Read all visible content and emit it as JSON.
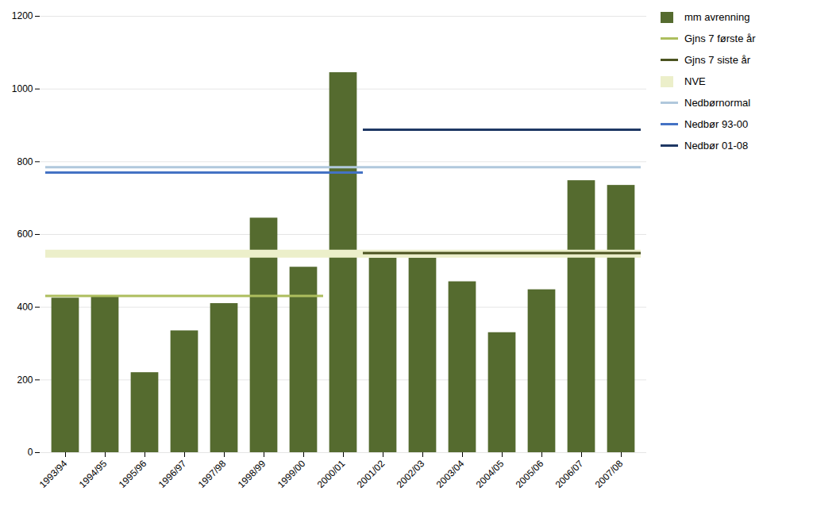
{
  "chart_data": {
    "type": "bar",
    "categories": [
      "1993/94",
      "1994/95",
      "1995/96",
      "1996/97",
      "1997/98",
      "1998/99",
      "1999/00",
      "2000/01",
      "2001/02",
      "2002/03",
      "2003/04",
      "2004/05",
      "2005/06",
      "2006/07",
      "2007/08"
    ],
    "series": [
      {
        "name": "mm avrenning",
        "type": "bar",
        "color": "#556B2F",
        "values": [
          425,
          430,
          220,
          335,
          410,
          645,
          510,
          1045,
          535,
          535,
          470,
          330,
          448,
          748,
          735
        ]
      },
      {
        "name": "Gjns 7 første år",
        "type": "line",
        "color": "#ADBE5E",
        "values": [
          431,
          431,
          431,
          431,
          431,
          431,
          431,
          null,
          null,
          null,
          null,
          null,
          null,
          null,
          null
        ]
      },
      {
        "name": "Gjns 7 siste år",
        "type": "line",
        "color": "#4B5320",
        "values": [
          null,
          null,
          null,
          null,
          null,
          null,
          null,
          null,
          549,
          549,
          549,
          549,
          549,
          549,
          549
        ]
      },
      {
        "name": "NVE",
        "type": "band",
        "color": "#ECEFCA",
        "values": [
          547,
          547,
          547,
          547,
          547,
          547,
          547,
          547,
          547,
          547,
          547,
          547,
          547,
          547,
          547
        ]
      },
      {
        "name": "Nedbørnormal",
        "type": "line",
        "color": "#B0C8DC",
        "values": [
          785,
          785,
          785,
          785,
          785,
          785,
          785,
          785,
          785,
          785,
          785,
          785,
          785,
          785,
          785
        ]
      },
      {
        "name": "Nedbør 93-00",
        "type": "line",
        "color": "#4472C4",
        "values": [
          770,
          770,
          770,
          770,
          770,
          770,
          770,
          770,
          null,
          null,
          null,
          null,
          null,
          null,
          null
        ]
      },
      {
        "name": "Nedbør 01-08",
        "type": "line",
        "color": "#1F3864",
        "values": [
          null,
          null,
          null,
          null,
          null,
          null,
          null,
          null,
          888,
          888,
          888,
          888,
          888,
          888,
          888
        ]
      }
    ],
    "ylim": [
      0,
      1200
    ],
    "yticks": [
      0,
      200,
      400,
      600,
      800,
      1000,
      1200
    ],
    "grid": true,
    "legend": "right"
  }
}
